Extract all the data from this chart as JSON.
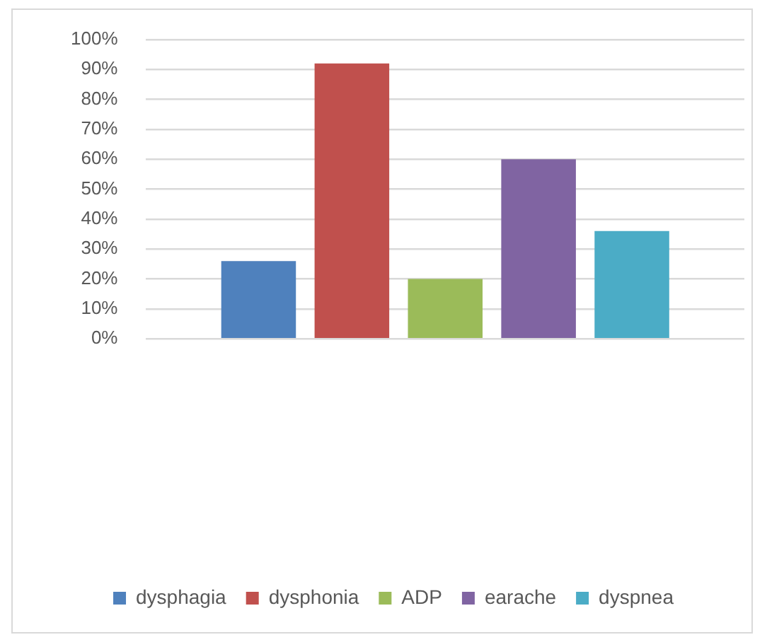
{
  "chart_data": {
    "type": "bar",
    "categories": [
      null
    ],
    "series": [
      {
        "name": "dysphagia",
        "color": "#4f81bd",
        "values": [
          26
        ]
      },
      {
        "name": "dysphonia",
        "color": "#c0504d",
        "values": [
          92
        ]
      },
      {
        "name": "ADP",
        "color": "#9bbb59",
        "values": [
          20
        ]
      },
      {
        "name": "earache",
        "color": "#8064a2",
        "values": [
          60
        ]
      },
      {
        "name": "dyspnea",
        "color": "#4bacc6",
        "values": [
          36
        ]
      }
    ],
    "ylim": [
      0,
      100
    ],
    "yticks": [
      {
        "value": 0,
        "label": "0%"
      },
      {
        "value": 10,
        "label": "10%"
      },
      {
        "value": 20,
        "label": "20%"
      },
      {
        "value": 30,
        "label": "30%"
      },
      {
        "value": 40,
        "label": "40%"
      },
      {
        "value": 50,
        "label": "50%"
      },
      {
        "value": 60,
        "label": "60%"
      },
      {
        "value": 70,
        "label": "70%"
      },
      {
        "value": 80,
        "label": "80%"
      },
      {
        "value": 90,
        "label": "90%"
      },
      {
        "value": 100,
        "label": "100%"
      }
    ],
    "grid": "y",
    "legend": "bottom"
  }
}
